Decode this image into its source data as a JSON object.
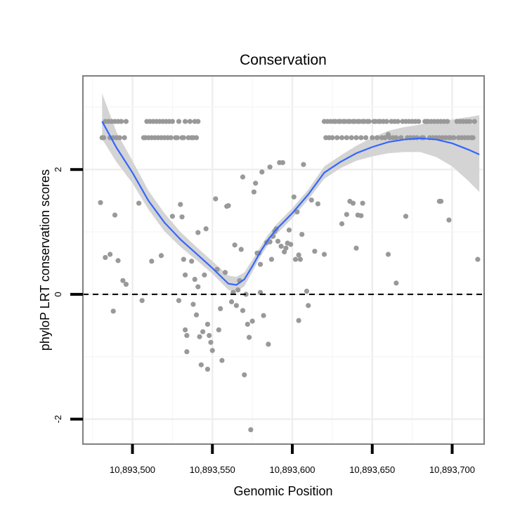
{
  "chart_data": {
    "type": "scatter",
    "title": "Conservation",
    "xlabel": "Genomic Position",
    "ylabel": "phyloP LRT conservation scores",
    "xlim": [
      10893469,
      10893720
    ],
    "ylim": [
      -2.4,
      3.5
    ],
    "x_ticks": [
      10893500,
      10893550,
      10893600,
      10893650,
      10893700
    ],
    "x_tick_labels": [
      "10,893,500",
      "10,893,550",
      "10,893,600",
      "10,893,650",
      "10,893,700"
    ],
    "y_ticks": [
      -2,
      0,
      2
    ],
    "y_tick_labels": [
      "-2",
      "0",
      "2"
    ],
    "reference_line": {
      "y": 0,
      "style": "dashed"
    },
    "colors": {
      "points": "#999999",
      "smooth_line": "#3366ff",
      "ribbon": "#d4d4d4",
      "panel_border": "#808080"
    },
    "scatter_series": {
      "name": "phyloP scores",
      "points": [
        [
          10893481,
          2.51
        ],
        [
          10893482,
          2.51
        ],
        [
          10893483,
          2.77
        ],
        [
          10893485,
          2.77
        ],
        [
          10893486,
          2.51
        ],
        [
          10893487,
          2.77
        ],
        [
          10893488,
          2.51
        ],
        [
          10893489,
          2.77
        ],
        [
          10893490,
          2.51
        ],
        [
          10893491,
          2.77
        ],
        [
          10893492,
          2.51
        ],
        [
          10893493,
          2.77
        ],
        [
          10893495,
          2.51
        ],
        [
          10893496,
          2.77
        ],
        [
          10893507,
          2.51
        ],
        [
          10893508,
          2.51
        ],
        [
          10893509,
          2.77
        ],
        [
          10893510,
          2.51
        ],
        [
          10893511,
          2.77
        ],
        [
          10893512,
          2.51
        ],
        [
          10893513,
          2.77
        ],
        [
          10893514,
          2.51
        ],
        [
          10893515,
          2.77
        ],
        [
          10893516,
          2.51
        ],
        [
          10893517,
          2.77
        ],
        [
          10893518,
          2.51
        ],
        [
          10893519,
          2.77
        ],
        [
          10893520,
          2.51
        ],
        [
          10893521,
          2.77
        ],
        [
          10893522,
          2.51
        ],
        [
          10893523,
          2.77
        ],
        [
          10893524,
          2.51
        ],
        [
          10893525,
          2.77
        ],
        [
          10893527,
          2.51
        ],
        [
          10893528,
          2.51
        ],
        [
          10893529,
          2.77
        ],
        [
          10893531,
          2.51
        ],
        [
          10893532,
          2.51
        ],
        [
          10893533,
          2.77
        ],
        [
          10893535,
          2.51
        ],
        [
          10893536,
          2.77
        ],
        [
          10893537,
          2.51
        ],
        [
          10893538,
          2.51
        ],
        [
          10893539,
          2.77
        ],
        [
          10893540,
          2.51
        ],
        [
          10893541,
          2.77
        ],
        [
          10893620,
          2.77
        ],
        [
          10893621,
          2.51
        ],
        [
          10893622,
          2.77
        ],
        [
          10893623,
          2.51
        ],
        [
          10893624,
          2.77
        ],
        [
          10893625,
          2.51
        ],
        [
          10893626,
          2.77
        ],
        [
          10893627,
          2.77
        ],
        [
          10893628,
          2.51
        ],
        [
          10893629,
          2.77
        ],
        [
          10893630,
          2.77
        ],
        [
          10893631,
          2.51
        ],
        [
          10893632,
          2.77
        ],
        [
          10893633,
          2.77
        ],
        [
          10893634,
          2.51
        ],
        [
          10893635,
          2.77
        ],
        [
          10893636,
          2.77
        ],
        [
          10893637,
          2.51
        ],
        [
          10893638,
          2.77
        ],
        [
          10893639,
          2.77
        ],
        [
          10893640,
          2.51
        ],
        [
          10893641,
          2.77
        ],
        [
          10893642,
          2.77
        ],
        [
          10893643,
          2.51
        ],
        [
          10893644,
          2.77
        ],
        [
          10893645,
          2.77
        ],
        [
          10893646,
          2.51
        ],
        [
          10893647,
          2.77
        ],
        [
          10893648,
          2.77
        ],
        [
          10893650,
          2.51
        ],
        [
          10893651,
          2.77
        ],
        [
          10893652,
          2.77
        ],
        [
          10893653,
          2.51
        ],
        [
          10893654,
          2.77
        ],
        [
          10893655,
          2.77
        ],
        [
          10893656,
          2.51
        ],
        [
          10893657,
          2.77
        ],
        [
          10893658,
          2.51
        ],
        [
          10893659,
          2.77
        ],
        [
          10893660,
          2.56
        ],
        [
          10893661,
          2.51
        ],
        [
          10893662,
          2.77
        ],
        [
          10893663,
          2.51
        ],
        [
          10893664,
          2.77
        ],
        [
          10893665,
          2.51
        ],
        [
          10893666,
          2.77
        ],
        [
          10893668,
          2.51
        ],
        [
          10893669,
          2.77
        ],
        [
          10893671,
          2.77
        ],
        [
          10893672,
          2.51
        ],
        [
          10893673,
          2.77
        ],
        [
          10893674,
          2.51
        ],
        [
          10893675,
          2.77
        ],
        [
          10893676,
          2.51
        ],
        [
          10893677,
          2.77
        ],
        [
          10893678,
          2.51
        ],
        [
          10893679,
          2.77
        ],
        [
          10893681,
          2.51
        ],
        [
          10893682,
          2.51
        ],
        [
          10893683,
          2.77
        ],
        [
          10893684,
          2.77
        ],
        [
          10893685,
          2.77
        ],
        [
          10893686,
          2.51
        ],
        [
          10893687,
          2.77
        ],
        [
          10893688,
          2.51
        ],
        [
          10893689,
          2.77
        ],
        [
          10893690,
          2.51
        ],
        [
          10893691,
          2.77
        ],
        [
          10893692,
          2.51
        ],
        [
          10893693,
          2.77
        ],
        [
          10893694,
          2.51
        ],
        [
          10893695,
          2.77
        ],
        [
          10893696,
          2.51
        ],
        [
          10893697,
          2.77
        ],
        [
          10893698,
          2.51
        ],
        [
          10893699,
          2.51
        ],
        [
          10893701,
          2.51
        ],
        [
          10893703,
          2.77
        ],
        [
          10893704,
          2.51
        ],
        [
          10893705,
          2.77
        ],
        [
          10893706,
          2.51
        ],
        [
          10893707,
          2.77
        ],
        [
          10893708,
          2.51
        ],
        [
          10893709,
          2.77
        ],
        [
          10893710,
          2.51
        ],
        [
          10893711,
          2.77
        ],
        [
          10893712,
          2.51
        ],
        [
          10893713,
          2.51
        ],
        [
          10893714,
          2.77
        ],
        [
          10893480,
          1.47
        ],
        [
          10893483,
          0.59
        ],
        [
          10893486,
          0.64
        ],
        [
          10893488,
          -0.27
        ],
        [
          10893489,
          1.27
        ],
        [
          10893491,
          0.54
        ],
        [
          10893494,
          0.22
        ],
        [
          10893496,
          0.16
        ],
        [
          10893504,
          1.46
        ],
        [
          10893506,
          -0.1
        ],
        [
          10893512,
          0.53
        ],
        [
          10893518,
          0.62
        ],
        [
          10893525,
          1.25
        ],
        [
          10893529,
          -0.1
        ],
        [
          10893530,
          1.44
        ],
        [
          10893531,
          1.24
        ],
        [
          10893532,
          0.56
        ],
        [
          10893533,
          0.31
        ],
        [
          10893533,
          -0.57
        ],
        [
          10893534,
          -0.66
        ],
        [
          10893534,
          -0.92
        ],
        [
          10893537,
          0.53
        ],
        [
          10893538,
          -0.16
        ],
        [
          10893539,
          0.24
        ],
        [
          10893540,
          -0.33
        ],
        [
          10893541,
          0.99
        ],
        [
          10893541,
          0.12
        ],
        [
          10893542,
          -0.68
        ],
        [
          10893543,
          -1.13
        ],
        [
          10893544,
          -0.6
        ],
        [
          10893545,
          0.31
        ],
        [
          10893546,
          1.05
        ],
        [
          10893547,
          -0.48
        ],
        [
          10893547,
          -1.2
        ],
        [
          10893548,
          -0.66
        ],
        [
          10893549,
          -0.77
        ],
        [
          10893550,
          -0.9
        ],
        [
          10893552,
          1.53
        ],
        [
          10893553,
          0.4
        ],
        [
          10893554,
          -0.57
        ],
        [
          10893555,
          -0.23
        ],
        [
          10893556,
          -1.06
        ],
        [
          10893558,
          0.35
        ],
        [
          10893559,
          1.41
        ],
        [
          10893560,
          1.42
        ],
        [
          10893562,
          -0.12
        ],
        [
          10893563,
          0.03
        ],
        [
          10893564,
          0.79
        ],
        [
          10893565,
          -0.18
        ],
        [
          10893566,
          0.07
        ],
        [
          10893567,
          0.22
        ],
        [
          10893568,
          0.72
        ],
        [
          10893569,
          1.88
        ],
        [
          10893569,
          -0.26
        ],
        [
          10893570,
          -1.29
        ],
        [
          10893571,
          0.0
        ],
        [
          10893572,
          -0.48
        ],
        [
          10893573,
          -0.69
        ],
        [
          10893574,
          -2.17
        ],
        [
          10893575,
          -0.43
        ],
        [
          10893576,
          1.64
        ],
        [
          10893577,
          1.78
        ],
        [
          10893578,
          0.66
        ],
        [
          10893579,
          0.66
        ],
        [
          10893580,
          0.48
        ],
        [
          10893580,
          0.03
        ],
        [
          10893581,
          1.96
        ],
        [
          10893582,
          -0.34
        ],
        [
          10893584,
          0.83
        ],
        [
          10893585,
          -0.8
        ],
        [
          10893586,
          0.84
        ],
        [
          10893586,
          2.04
        ],
        [
          10893587,
          0.56
        ],
        [
          10893588,
          0.93
        ],
        [
          10893589,
          1.01
        ],
        [
          10893590,
          1.05
        ],
        [
          10893591,
          0.85
        ],
        [
          10893592,
          2.11
        ],
        [
          10893593,
          0.77
        ],
        [
          10893594,
          2.11
        ],
        [
          10893595,
          0.68
        ],
        [
          10893596,
          0.74
        ],
        [
          10893597,
          0.82
        ],
        [
          10893598,
          1.03
        ],
        [
          10893599,
          0.8
        ],
        [
          10893601,
          1.56
        ],
        [
          10893602,
          0.56
        ],
        [
          10893603,
          1.32
        ],
        [
          10893604,
          -0.42
        ],
        [
          10893604,
          0.63
        ],
        [
          10893605,
          0.56
        ],
        [
          10893606,
          0.96
        ],
        [
          10893607,
          2.08
        ],
        [
          10893609,
          0.05
        ],
        [
          10893610,
          -0.18
        ],
        [
          10893612,
          1.51
        ],
        [
          10893614,
          0.69
        ],
        [
          10893616,
          1.45
        ],
        [
          10893620,
          0.64
        ],
        [
          10893631,
          1.13
        ],
        [
          10893634,
          1.28
        ],
        [
          10893636,
          1.49
        ],
        [
          10893638,
          1.46
        ],
        [
          10893640,
          0.74
        ],
        [
          10893641,
          1.27
        ],
        [
          10893643,
          1.26
        ],
        [
          10893644,
          1.46
        ],
        [
          10893660,
          0.64
        ],
        [
          10893665,
          0.18
        ],
        [
          10893671,
          1.25
        ],
        [
          10893692,
          1.49
        ],
        [
          10893693,
          1.49
        ],
        [
          10893698,
          1.19
        ],
        [
          10893716,
          0.56
        ]
      ]
    },
    "smooth_series": {
      "name": "loess fit",
      "x": [
        10893481,
        10893490,
        10893500,
        10893510,
        10893520,
        10893530,
        10893540,
        10893550,
        10893560,
        10893565,
        10893570,
        10893575,
        10893580,
        10893585,
        10893590,
        10893600,
        10893610,
        10893620,
        10893630,
        10893640,
        10893650,
        10893660,
        10893670,
        10893680,
        10893690,
        10893700,
        10893710,
        10893717
      ],
      "y": [
        2.77,
        2.35,
        1.95,
        1.5,
        1.15,
        0.88,
        0.65,
        0.42,
        0.17,
        0.15,
        0.24,
        0.45,
        0.68,
        0.88,
        1.04,
        1.3,
        1.6,
        1.95,
        2.12,
        2.26,
        2.36,
        2.44,
        2.48,
        2.5,
        2.48,
        2.42,
        2.32,
        2.24
      ],
      "lower": [
        2.49,
        2.12,
        1.78,
        1.36,
        1.01,
        0.76,
        0.55,
        0.33,
        0.07,
        0.04,
        0.13,
        0.36,
        0.6,
        0.8,
        0.96,
        1.22,
        1.52,
        1.85,
        2.02,
        2.14,
        2.21,
        2.26,
        2.28,
        2.28,
        2.2,
        2.05,
        1.82,
        1.64
      ],
      "upper": [
        3.22,
        2.6,
        2.14,
        1.66,
        1.3,
        1.0,
        0.76,
        0.53,
        0.3,
        0.28,
        0.35,
        0.55,
        0.76,
        0.96,
        1.12,
        1.38,
        1.68,
        2.05,
        2.22,
        2.38,
        2.51,
        2.62,
        2.68,
        2.72,
        2.78,
        2.8,
        2.84,
        2.87
      ]
    }
  }
}
